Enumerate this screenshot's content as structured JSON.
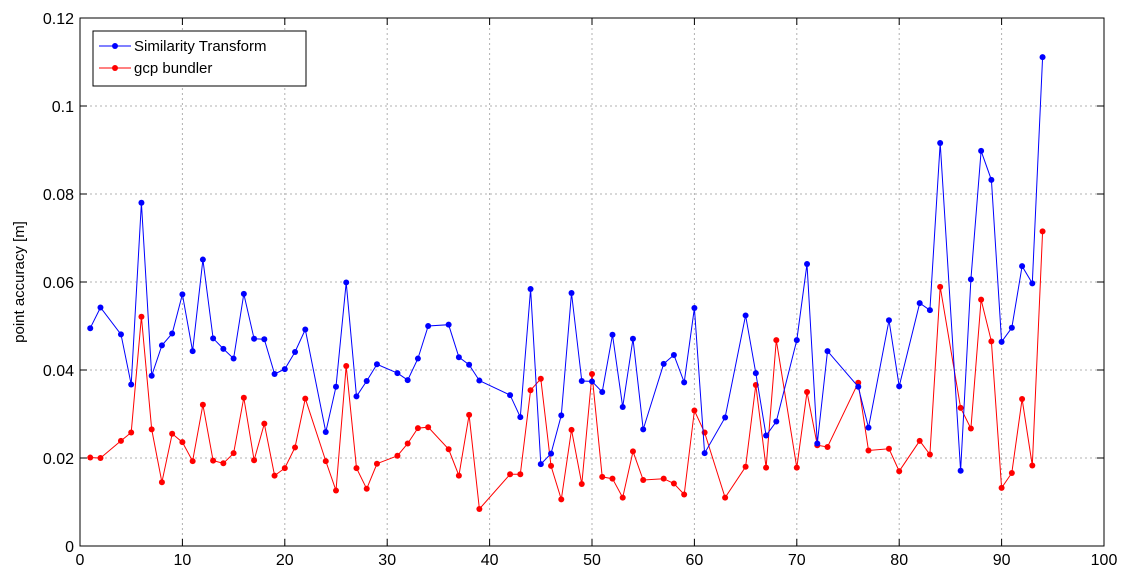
{
  "chart_data": {
    "type": "line",
    "title": "",
    "xlabel": "",
    "ylabel": "point accuracy [m]",
    "xlim": [
      0,
      100
    ],
    "ylim": [
      0,
      0.12
    ],
    "xticks": [
      0,
      10,
      20,
      30,
      40,
      50,
      60,
      70,
      80,
      90,
      100
    ],
    "xtick_labels": [
      "0",
      "10",
      "20",
      "30",
      "40",
      "50",
      "60",
      "70",
      "80",
      "90",
      "100"
    ],
    "yticks": [
      0,
      0.02,
      0.04,
      0.06,
      0.08,
      0.1,
      0.12
    ],
    "ytick_labels": [
      "0",
      "0.02",
      "0.04",
      "0.06",
      "0.08",
      "0.1",
      "0.12"
    ],
    "grid": true,
    "legend_position": "top-left",
    "series": [
      {
        "name": "Similarity Transform",
        "color": "#0000ff",
        "points": [
          [
            1,
            0.0495
          ],
          [
            2,
            0.0542
          ],
          [
            4,
            0.0481
          ],
          [
            5,
            0.0367
          ],
          [
            6,
            0.078
          ],
          [
            7,
            0.0387
          ],
          [
            8,
            0.0456
          ],
          [
            9,
            0.0483
          ],
          [
            10,
            0.0572
          ],
          [
            11,
            0.0443
          ],
          [
            12,
            0.0651
          ],
          [
            13,
            0.0472
          ],
          [
            14,
            0.0448
          ],
          [
            15,
            0.0426
          ],
          [
            16,
            0.0573
          ],
          [
            17,
            0.0471
          ],
          [
            18,
            0.047
          ],
          [
            19,
            0.0391
          ],
          [
            20,
            0.0402
          ],
          [
            21,
            0.0441
          ],
          [
            22,
            0.0492
          ],
          [
            24,
            0.0259
          ],
          [
            25,
            0.0362
          ],
          [
            26,
            0.0599
          ],
          [
            27,
            0.034
          ],
          [
            28,
            0.0375
          ],
          [
            29,
            0.0413
          ],
          [
            31,
            0.0393
          ],
          [
            32,
            0.0377
          ],
          [
            33,
            0.0426
          ],
          [
            34,
            0.05
          ],
          [
            36,
            0.0503
          ],
          [
            37,
            0.0429
          ],
          [
            38,
            0.0412
          ],
          [
            39,
            0.0376
          ],
          [
            42,
            0.0343
          ],
          [
            43,
            0.0293
          ],
          [
            44,
            0.0584
          ],
          [
            45,
            0.0186
          ],
          [
            46,
            0.021
          ],
          [
            47,
            0.0297
          ],
          [
            48,
            0.0575
          ],
          [
            49,
            0.0375
          ],
          [
            50,
            0.0374
          ],
          [
            51,
            0.035
          ],
          [
            52,
            0.048
          ],
          [
            53,
            0.0316
          ],
          [
            54,
            0.0471
          ],
          [
            55,
            0.0265
          ],
          [
            57,
            0.0414
          ],
          [
            58,
            0.0434
          ],
          [
            59,
            0.0372
          ],
          [
            60,
            0.0541
          ],
          [
            61,
            0.0211
          ],
          [
            63,
            0.0292
          ],
          [
            65,
            0.0524
          ],
          [
            66,
            0.0393
          ],
          [
            67,
            0.0251
          ],
          [
            68,
            0.0283
          ],
          [
            70,
            0.0468
          ],
          [
            71,
            0.0641
          ],
          [
            72,
            0.0233
          ],
          [
            73,
            0.0443
          ],
          [
            76,
            0.0362
          ],
          [
            77,
            0.0269
          ],
          [
            79,
            0.0513
          ],
          [
            80,
            0.0363
          ],
          [
            82,
            0.0552
          ],
          [
            83,
            0.0536
          ],
          [
            84,
            0.0916
          ],
          [
            86,
            0.0171
          ],
          [
            87,
            0.0606
          ],
          [
            88,
            0.0898
          ],
          [
            89,
            0.0832
          ],
          [
            90,
            0.0464
          ],
          [
            91,
            0.0496
          ],
          [
            92,
            0.0636
          ],
          [
            93,
            0.0597
          ],
          [
            94,
            0.1111
          ]
        ]
      },
      {
        "name": "gcp bundler",
        "color": "#ff0000",
        "points": [
          [
            1,
            0.0201
          ],
          [
            2,
            0.02
          ],
          [
            4,
            0.0239
          ],
          [
            5,
            0.0258
          ],
          [
            6,
            0.0521
          ],
          [
            7,
            0.0265
          ],
          [
            8,
            0.0145
          ],
          [
            9,
            0.0255
          ],
          [
            10,
            0.0236
          ],
          [
            11,
            0.0193
          ],
          [
            12,
            0.0321
          ],
          [
            13,
            0.0194
          ],
          [
            14,
            0.0188
          ],
          [
            15,
            0.0211
          ],
          [
            16,
            0.0337
          ],
          [
            17,
            0.0195
          ],
          [
            18,
            0.0278
          ],
          [
            19,
            0.016
          ],
          [
            20,
            0.0177
          ],
          [
            21,
            0.0224
          ],
          [
            22,
            0.0335
          ],
          [
            24,
            0.0193
          ],
          [
            25,
            0.0126
          ],
          [
            26,
            0.0409
          ],
          [
            27,
            0.0177
          ],
          [
            28,
            0.013
          ],
          [
            29,
            0.0187
          ],
          [
            31,
            0.0205
          ],
          [
            32,
            0.0233
          ],
          [
            33,
            0.0268
          ],
          [
            34,
            0.027
          ],
          [
            36,
            0.022
          ],
          [
            37,
            0.016
          ],
          [
            38,
            0.0298
          ],
          [
            39,
            0.0084
          ],
          [
            42,
            0.0163
          ],
          [
            43,
            0.0163
          ],
          [
            44,
            0.0354
          ],
          [
            45,
            0.038
          ],
          [
            46,
            0.0182
          ],
          [
            47,
            0.0106
          ],
          [
            48,
            0.0264
          ],
          [
            49,
            0.0141
          ],
          [
            50,
            0.0391
          ],
          [
            51,
            0.0157
          ],
          [
            52,
            0.0153
          ],
          [
            53,
            0.011
          ],
          [
            54,
            0.0215
          ],
          [
            55,
            0.015
          ],
          [
            57,
            0.0153
          ],
          [
            58,
            0.0142
          ],
          [
            59,
            0.0117
          ],
          [
            60,
            0.0308
          ],
          [
            61,
            0.0258
          ],
          [
            63,
            0.011
          ],
          [
            65,
            0.018
          ],
          [
            66,
            0.0366
          ],
          [
            67,
            0.0178
          ],
          [
            68,
            0.0468
          ],
          [
            70,
            0.0178
          ],
          [
            71,
            0.035
          ],
          [
            72,
            0.0229
          ],
          [
            73,
            0.0225
          ],
          [
            76,
            0.0371
          ],
          [
            77,
            0.0217
          ],
          [
            79,
            0.0221
          ],
          [
            80,
            0.017
          ],
          [
            82,
            0.0239
          ],
          [
            83,
            0.0208
          ],
          [
            84,
            0.0589
          ],
          [
            86,
            0.0314
          ],
          [
            87,
            0.0267
          ],
          [
            88,
            0.056
          ],
          [
            89,
            0.0465
          ],
          [
            90,
            0.0132
          ],
          [
            91,
            0.0166
          ],
          [
            92,
            0.0334
          ],
          [
            93,
            0.0183
          ],
          [
            94,
            0.0715
          ]
        ]
      }
    ]
  }
}
